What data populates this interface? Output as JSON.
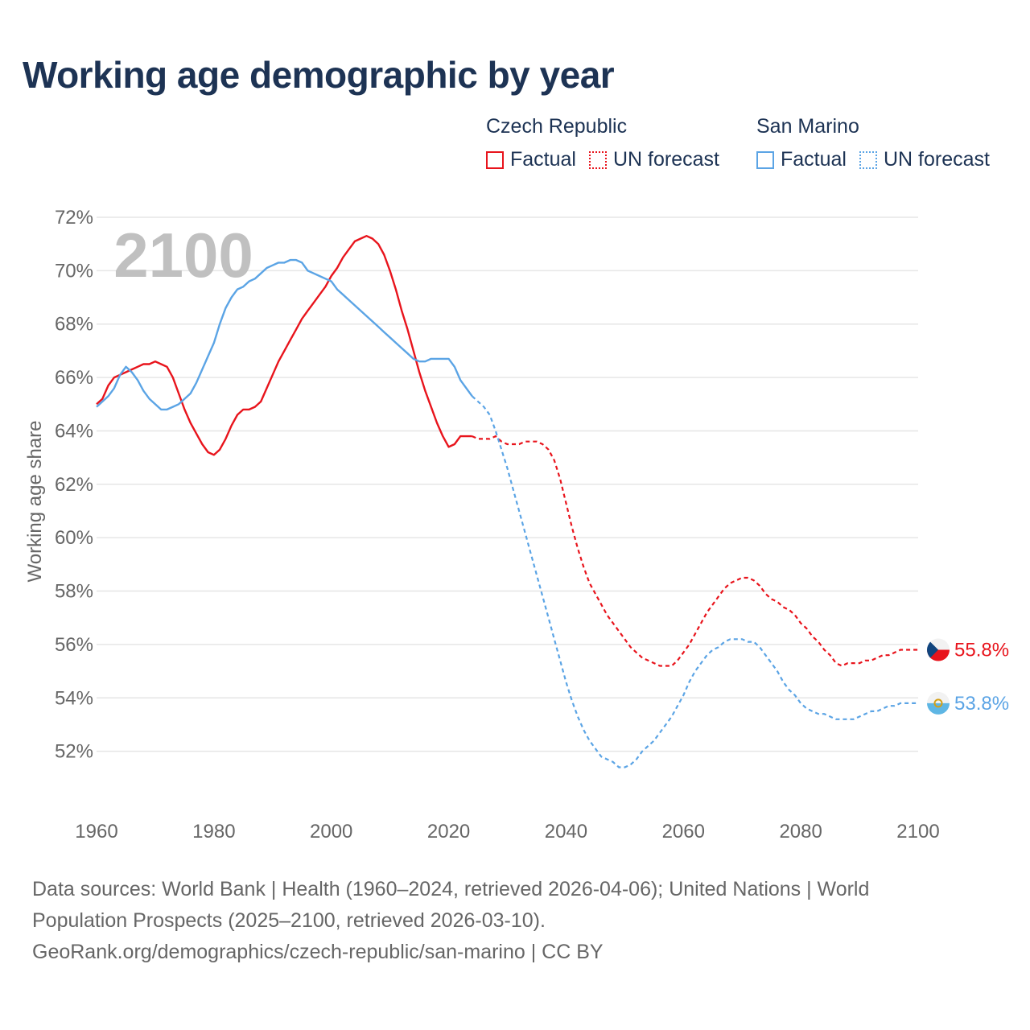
{
  "title": "Working age demographic by year",
  "legend": {
    "czech": {
      "name": "Czech Republic",
      "factual": "Factual",
      "forecast": "UN forecast",
      "color": "#e8141c"
    },
    "sanmarino": {
      "name": "San Marino",
      "factual": "Factual",
      "forecast": "UN forecast",
      "color": "#5ba4e5"
    }
  },
  "sources": {
    "line1": "Data sources: World Bank | Health (1960–2024, retrieved 2026-04-06); United Nations | World",
    "line2": "Population Prospects (2025–2100, retrieved 2026-03-10).",
    "line3": "GeoRank.org/demographics/czech-republic/san-marino | CC BY"
  },
  "chart_data": {
    "type": "line",
    "year_label": "2100",
    "ylabel": "Working age share",
    "xlabel": "",
    "xlim": [
      1960,
      2100
    ],
    "ylim": [
      50,
      72
    ],
    "x_ticks": [
      1960,
      1980,
      2000,
      2020,
      2040,
      2060,
      2080,
      2100
    ],
    "y_ticks": [
      52,
      54,
      56,
      58,
      60,
      62,
      64,
      66,
      68,
      70,
      72
    ],
    "grid": true,
    "series": [
      {
        "name": "Czech Republic",
        "color": "#e8141c",
        "end_label": "55.8%",
        "factual": [
          [
            1960,
            65.0
          ],
          [
            1961,
            65.2
          ],
          [
            1962,
            65.7
          ],
          [
            1963,
            66.0
          ],
          [
            1964,
            66.1
          ],
          [
            1965,
            66.2
          ],
          [
            1966,
            66.3
          ],
          [
            1967,
            66.4
          ],
          [
            1968,
            66.5
          ],
          [
            1969,
            66.5
          ],
          [
            1970,
            66.6
          ],
          [
            1971,
            66.5
          ],
          [
            1972,
            66.4
          ],
          [
            1973,
            66.0
          ],
          [
            1974,
            65.4
          ],
          [
            1975,
            64.8
          ],
          [
            1976,
            64.3
          ],
          [
            1977,
            63.9
          ],
          [
            1978,
            63.5
          ],
          [
            1979,
            63.2
          ],
          [
            1980,
            63.1
          ],
          [
            1981,
            63.3
          ],
          [
            1982,
            63.7
          ],
          [
            1983,
            64.2
          ],
          [
            1984,
            64.6
          ],
          [
            1985,
            64.8
          ],
          [
            1986,
            64.8
          ],
          [
            1987,
            64.9
          ],
          [
            1988,
            65.1
          ],
          [
            1989,
            65.6
          ],
          [
            1990,
            66.1
          ],
          [
            1991,
            66.6
          ],
          [
            1992,
            67.0
          ],
          [
            1993,
            67.4
          ],
          [
            1994,
            67.8
          ],
          [
            1995,
            68.2
          ],
          [
            1996,
            68.5
          ],
          [
            1997,
            68.8
          ],
          [
            1998,
            69.1
          ],
          [
            1999,
            69.4
          ],
          [
            2000,
            69.8
          ],
          [
            2001,
            70.1
          ],
          [
            2002,
            70.5
          ],
          [
            2003,
            70.8
          ],
          [
            2004,
            71.1
          ],
          [
            2005,
            71.2
          ],
          [
            2006,
            71.3
          ],
          [
            2007,
            71.2
          ],
          [
            2008,
            71.0
          ],
          [
            2009,
            70.6
          ],
          [
            2010,
            70.0
          ],
          [
            2011,
            69.3
          ],
          [
            2012,
            68.5
          ],
          [
            2013,
            67.8
          ],
          [
            2014,
            67.0
          ],
          [
            2015,
            66.2
          ],
          [
            2016,
            65.5
          ],
          [
            2017,
            64.9
          ],
          [
            2018,
            64.3
          ],
          [
            2019,
            63.8
          ],
          [
            2020,
            63.4
          ],
          [
            2021,
            63.5
          ],
          [
            2022,
            63.8
          ],
          [
            2023,
            63.8
          ],
          [
            2024,
            63.8
          ]
        ],
        "forecast": [
          [
            2024,
            63.8
          ],
          [
            2025,
            63.7
          ],
          [
            2026,
            63.7
          ],
          [
            2027,
            63.7
          ],
          [
            2028,
            63.8
          ],
          [
            2029,
            63.6
          ],
          [
            2030,
            63.5
          ],
          [
            2031,
            63.5
          ],
          [
            2032,
            63.5
          ],
          [
            2033,
            63.6
          ],
          [
            2034,
            63.6
          ],
          [
            2035,
            63.6
          ],
          [
            2036,
            63.5
          ],
          [
            2037,
            63.3
          ],
          [
            2038,
            62.9
          ],
          [
            2039,
            62.2
          ],
          [
            2040,
            61.3
          ],
          [
            2041,
            60.4
          ],
          [
            2042,
            59.6
          ],
          [
            2043,
            58.9
          ],
          [
            2044,
            58.3
          ],
          [
            2045,
            57.9
          ],
          [
            2046,
            57.5
          ],
          [
            2047,
            57.1
          ],
          [
            2048,
            56.8
          ],
          [
            2049,
            56.5
          ],
          [
            2050,
            56.2
          ],
          [
            2051,
            55.9
          ],
          [
            2052,
            55.7
          ],
          [
            2053,
            55.5
          ],
          [
            2054,
            55.4
          ],
          [
            2055,
            55.3
          ],
          [
            2056,
            55.2
          ],
          [
            2057,
            55.2
          ],
          [
            2058,
            55.2
          ],
          [
            2059,
            55.4
          ],
          [
            2060,
            55.7
          ],
          [
            2061,
            56.0
          ],
          [
            2062,
            56.4
          ],
          [
            2063,
            56.8
          ],
          [
            2064,
            57.2
          ],
          [
            2065,
            57.5
          ],
          [
            2066,
            57.8
          ],
          [
            2067,
            58.1
          ],
          [
            2068,
            58.3
          ],
          [
            2069,
            58.4
          ],
          [
            2070,
            58.5
          ],
          [
            2071,
            58.5
          ],
          [
            2072,
            58.4
          ],
          [
            2073,
            58.2
          ],
          [
            2074,
            57.9
          ],
          [
            2075,
            57.7
          ],
          [
            2076,
            57.6
          ],
          [
            2077,
            57.4
          ],
          [
            2078,
            57.3
          ],
          [
            2079,
            57.1
          ],
          [
            2080,
            56.8
          ],
          [
            2081,
            56.6
          ],
          [
            2082,
            56.3
          ],
          [
            2083,
            56.1
          ],
          [
            2084,
            55.8
          ],
          [
            2085,
            55.6
          ],
          [
            2086,
            55.3
          ],
          [
            2087,
            55.2
          ],
          [
            2088,
            55.3
          ],
          [
            2089,
            55.3
          ],
          [
            2090,
            55.3
          ],
          [
            2091,
            55.4
          ],
          [
            2092,
            55.4
          ],
          [
            2093,
            55.5
          ],
          [
            2094,
            55.6
          ],
          [
            2095,
            55.6
          ],
          [
            2096,
            55.7
          ],
          [
            2097,
            55.8
          ],
          [
            2098,
            55.8
          ],
          [
            2099,
            55.8
          ],
          [
            2100,
            55.8
          ]
        ]
      },
      {
        "name": "San Marino",
        "color": "#5ba4e5",
        "end_label": "53.8%",
        "factual": [
          [
            1960,
            64.9
          ],
          [
            1961,
            65.1
          ],
          [
            1962,
            65.3
          ],
          [
            1963,
            65.6
          ],
          [
            1964,
            66.1
          ],
          [
            1965,
            66.4
          ],
          [
            1966,
            66.2
          ],
          [
            1967,
            65.9
          ],
          [
            1968,
            65.5
          ],
          [
            1969,
            65.2
          ],
          [
            1970,
            65.0
          ],
          [
            1971,
            64.8
          ],
          [
            1972,
            64.8
          ],
          [
            1973,
            64.9
          ],
          [
            1974,
            65.0
          ],
          [
            1975,
            65.2
          ],
          [
            1976,
            65.4
          ],
          [
            1977,
            65.8
          ],
          [
            1978,
            66.3
          ],
          [
            1979,
            66.8
          ],
          [
            1980,
            67.3
          ],
          [
            1981,
            68.0
          ],
          [
            1982,
            68.6
          ],
          [
            1983,
            69.0
          ],
          [
            1984,
            69.3
          ],
          [
            1985,
            69.4
          ],
          [
            1986,
            69.6
          ],
          [
            1987,
            69.7
          ],
          [
            1988,
            69.9
          ],
          [
            1989,
            70.1
          ],
          [
            1990,
            70.2
          ],
          [
            1991,
            70.3
          ],
          [
            1992,
            70.3
          ],
          [
            1993,
            70.4
          ],
          [
            1994,
            70.4
          ],
          [
            1995,
            70.3
          ],
          [
            1996,
            70.0
          ],
          [
            1997,
            69.9
          ],
          [
            1998,
            69.8
          ],
          [
            1999,
            69.7
          ],
          [
            2000,
            69.6
          ],
          [
            2001,
            69.3
          ],
          [
            2002,
            69.1
          ],
          [
            2003,
            68.9
          ],
          [
            2004,
            68.7
          ],
          [
            2005,
            68.5
          ],
          [
            2006,
            68.3
          ],
          [
            2007,
            68.1
          ],
          [
            2008,
            67.9
          ],
          [
            2009,
            67.7
          ],
          [
            2010,
            67.5
          ],
          [
            2011,
            67.3
          ],
          [
            2012,
            67.1
          ],
          [
            2013,
            66.9
          ],
          [
            2014,
            66.7
          ],
          [
            2015,
            66.6
          ],
          [
            2016,
            66.6
          ],
          [
            2017,
            66.7
          ],
          [
            2018,
            66.7
          ],
          [
            2019,
            66.7
          ],
          [
            2020,
            66.7
          ],
          [
            2021,
            66.4
          ],
          [
            2022,
            65.9
          ],
          [
            2023,
            65.6
          ],
          [
            2024,
            65.3
          ]
        ],
        "forecast": [
          [
            2024,
            65.3
          ],
          [
            2025,
            65.1
          ],
          [
            2026,
            64.9
          ],
          [
            2027,
            64.6
          ],
          [
            2028,
            64.0
          ],
          [
            2029,
            63.3
          ],
          [
            2030,
            62.6
          ],
          [
            2031,
            61.8
          ],
          [
            2032,
            61.0
          ],
          [
            2033,
            60.2
          ],
          [
            2034,
            59.4
          ],
          [
            2035,
            58.6
          ],
          [
            2036,
            57.8
          ],
          [
            2037,
            57.0
          ],
          [
            2038,
            56.2
          ],
          [
            2039,
            55.4
          ],
          [
            2040,
            54.6
          ],
          [
            2041,
            53.9
          ],
          [
            2042,
            53.3
          ],
          [
            2043,
            52.8
          ],
          [
            2044,
            52.4
          ],
          [
            2045,
            52.1
          ],
          [
            2046,
            51.8
          ],
          [
            2047,
            51.7
          ],
          [
            2048,
            51.6
          ],
          [
            2049,
            51.4
          ],
          [
            2050,
            51.4
          ],
          [
            2051,
            51.5
          ],
          [
            2052,
            51.7
          ],
          [
            2053,
            52.0
          ],
          [
            2054,
            52.2
          ],
          [
            2055,
            52.4
          ],
          [
            2056,
            52.7
          ],
          [
            2057,
            53.0
          ],
          [
            2058,
            53.3
          ],
          [
            2059,
            53.7
          ],
          [
            2060,
            54.1
          ],
          [
            2061,
            54.6
          ],
          [
            2062,
            55.0
          ],
          [
            2063,
            55.3
          ],
          [
            2064,
            55.6
          ],
          [
            2065,
            55.8
          ],
          [
            2066,
            55.9
          ],
          [
            2067,
            56.1
          ],
          [
            2068,
            56.2
          ],
          [
            2069,
            56.2
          ],
          [
            2070,
            56.2
          ],
          [
            2071,
            56.1
          ],
          [
            2072,
            56.1
          ],
          [
            2073,
            55.9
          ],
          [
            2074,
            55.6
          ],
          [
            2075,
            55.3
          ],
          [
            2076,
            55.0
          ],
          [
            2077,
            54.6
          ],
          [
            2078,
            54.3
          ],
          [
            2079,
            54.1
          ],
          [
            2080,
            53.8
          ],
          [
            2081,
            53.6
          ],
          [
            2082,
            53.5
          ],
          [
            2083,
            53.4
          ],
          [
            2084,
            53.4
          ],
          [
            2085,
            53.3
          ],
          [
            2086,
            53.2
          ],
          [
            2087,
            53.2
          ],
          [
            2088,
            53.2
          ],
          [
            2089,
            53.2
          ],
          [
            2090,
            53.3
          ],
          [
            2091,
            53.4
          ],
          [
            2092,
            53.5
          ],
          [
            2093,
            53.5
          ],
          [
            2094,
            53.6
          ],
          [
            2095,
            53.7
          ],
          [
            2096,
            53.7
          ],
          [
            2097,
            53.8
          ],
          [
            2098,
            53.8
          ],
          [
            2099,
            53.8
          ],
          [
            2100,
            53.8
          ]
        ]
      }
    ]
  }
}
